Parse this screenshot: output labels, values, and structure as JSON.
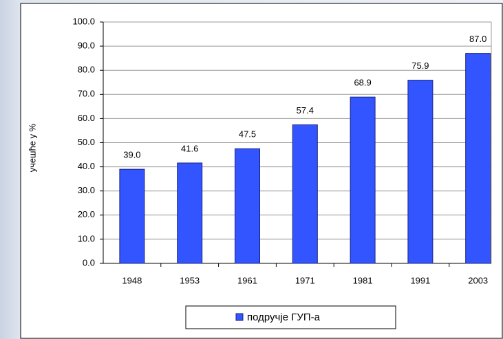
{
  "chart_data": {
    "type": "bar",
    "y_label": "учешће у %",
    "categories": [
      "1948",
      "1953",
      "1961",
      "1971",
      "1981",
      "1991",
      "2003"
    ],
    "series": [
      {
        "name": "подручје ГУП-а",
        "color": "#3355ff",
        "values": [
          39.0,
          41.6,
          47.5,
          57.4,
          68.9,
          75.9,
          87.0
        ],
        "value_labels": [
          "39.0",
          "41.6",
          "47.5",
          "57.4",
          "68.9",
          "75.9",
          "87.0"
        ]
      }
    ],
    "ylim": [
      0,
      100
    ],
    "yticks": [
      {
        "value": 0,
        "label": "0.0"
      },
      {
        "value": 10,
        "label": "10.0"
      },
      {
        "value": 20,
        "label": "20.0"
      },
      {
        "value": 30,
        "label": "30.0"
      },
      {
        "value": 40,
        "label": "40.0"
      },
      {
        "value": 50,
        "label": "50.0"
      },
      {
        "value": 60,
        "label": "60.0"
      },
      {
        "value": 70,
        "label": "70.0"
      },
      {
        "value": 80,
        "label": "80.0"
      },
      {
        "value": 90,
        "label": "90.0"
      },
      {
        "value": 100,
        "label": "100.0"
      }
    ],
    "grid": true,
    "legend": "bottom"
  }
}
